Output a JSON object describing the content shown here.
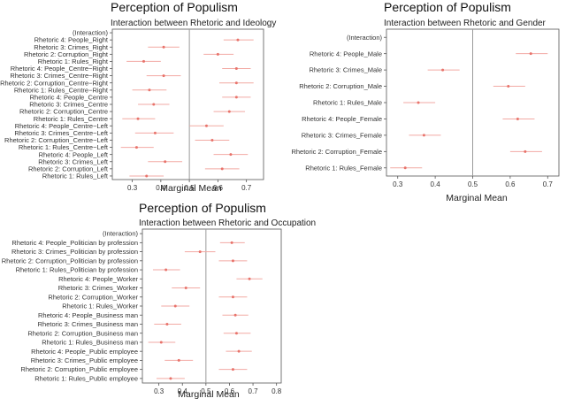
{
  "chart_data": [
    {
      "type": "scatter",
      "title": "Perception of Populism",
      "subtitle": "Interaction between Rhetoric and Ideology",
      "xlabel": "Marginal Mean",
      "ylabel": "",
      "xlim": [
        0.23,
        0.76
      ],
      "xticks": [
        "0.3",
        "0.4",
        "0.5",
        "0.6",
        "0.7"
      ],
      "reference_line": 0.5,
      "categories": [
        "(Interaction)",
        "Rhetoric 4: People_Right",
        "Rhetoric 3: Crimes_Right",
        "Rhetoric 2: Corruption_Right",
        "Rhetoric 1: Rules_Right",
        "Rhetoric 4: People_Centre−Right",
        "Rhetoric 3: Crimes_Centre−Right",
        "Rhetoric 2: Corruption_Centre−Right",
        "Rhetoric 1: Rules_Centre−Right",
        "Rhetoric 4: People_Centre",
        "Rhetoric 3: Crimes_Centre",
        "Rhetoric 2: Corruption_Centre",
        "Rhetoric 1: Rules_Centre",
        "Rhetoric 4: People_Centre−Left",
        "Rhetoric 3: Crimes_Centre−Left",
        "Rhetoric 2: Corruption_Centre−Left",
        "Rhetoric 1: Rules_Centre−Left",
        "Rhetoric 4: People_Left",
        "Rhetoric 3: Crimes_Left",
        "Rhetoric 2: Corruption_Left",
        "Rhetoric 1: Rules_Left"
      ],
      "estimates": [
        null,
        0.67,
        0.41,
        0.6,
        0.34,
        0.665,
        0.41,
        0.665,
        0.36,
        0.665,
        0.375,
        0.64,
        0.32,
        0.56,
        0.38,
        0.58,
        0.315,
        0.645,
        0.415,
        0.615,
        0.35
      ],
      "ci_low": [
        null,
        0.62,
        0.355,
        0.55,
        0.28,
        0.615,
        0.35,
        0.605,
        0.3,
        0.615,
        0.32,
        0.585,
        0.265,
        0.5,
        0.31,
        0.52,
        0.26,
        0.585,
        0.355,
        0.555,
        0.29
      ],
      "ci_high": [
        null,
        0.725,
        0.465,
        0.655,
        0.4,
        0.715,
        0.47,
        0.725,
        0.42,
        0.715,
        0.43,
        0.695,
        0.38,
        0.62,
        0.445,
        0.64,
        0.375,
        0.705,
        0.475,
        0.675,
        0.41
      ]
    },
    {
      "type": "scatter",
      "title": "Perception of Populism",
      "subtitle": "Interaction between Rhetoric and Gender",
      "xlabel": "Marginal Mean",
      "ylabel": "",
      "xlim": [
        0.27,
        0.73
      ],
      "xticks": [
        "0.3",
        "0.4",
        "0.5",
        "0.6",
        "0.7"
      ],
      "reference_line": 0.5,
      "categories": [
        "(Interaction)",
        "Rhetoric 4: People_Male",
        "Rhetoric 3: Crimes_Male",
        "Rhetoric 2: Corruption_Male",
        "Rhetoric 1: Rules_Male",
        "Rhetoric 4: People_Female",
        "Rhetoric 3: Crimes_Female",
        "Rhetoric 2: Corruption_Female",
        "Rhetoric 1: Rules_Female"
      ],
      "estimates": [
        null,
        0.655,
        0.42,
        0.595,
        0.355,
        0.62,
        0.37,
        0.64,
        0.32
      ],
      "ci_low": [
        null,
        0.615,
        0.38,
        0.555,
        0.315,
        0.58,
        0.33,
        0.6,
        0.28
      ],
      "ci_high": [
        null,
        0.7,
        0.465,
        0.64,
        0.4,
        0.665,
        0.415,
        0.685,
        0.365
      ]
    },
    {
      "type": "scatter",
      "title": "Perception of Populism",
      "subtitle": "Interaction between Rhetoric and Occupation",
      "xlabel": "Marginal Mean",
      "ylabel": "",
      "xlim": [
        0.23,
        0.82
      ],
      "xticks": [
        "0.3",
        "0.4",
        "0.5",
        "0.6",
        "0.7",
        "0.8"
      ],
      "reference_line": 0.5,
      "categories": [
        "(Interaction)",
        "Rhetoric 4: People_Politician by profession",
        "Rhetoric 3: Crimes_Politician by profession",
        "Rhetoric 2: Corruption_Politician by profession",
        "Rhetoric 1: Rules_Politician by profession",
        "Rhetoric 4: People_Worker",
        "Rhetoric 3: Crimes_Worker",
        "Rhetoric 2: Corruption_Worker",
        "Rhetoric 1: Rules_Worker",
        "Rhetoric 4: People_Business man",
        "Rhetoric 3: Crimes_Business man",
        "Rhetoric 2: Corruption_Business man",
        "Rhetoric 1: Rules_Business man",
        "Rhetoric 4: People_Public employee",
        "Rhetoric 3: Crimes_Public employee",
        "Rhetoric 2: Corruption_Public employee",
        "Rhetoric 1: Rules_Public employee"
      ],
      "estimates": [
        null,
        0.61,
        0.475,
        0.615,
        0.33,
        0.685,
        0.415,
        0.615,
        0.37,
        0.625,
        0.335,
        0.63,
        0.31,
        0.64,
        0.385,
        0.615,
        0.35
      ],
      "ci_low": [
        null,
        0.56,
        0.41,
        0.555,
        0.275,
        0.63,
        0.355,
        0.555,
        0.31,
        0.57,
        0.28,
        0.575,
        0.255,
        0.585,
        0.325,
        0.555,
        0.29
      ],
      "ci_high": [
        null,
        0.665,
        0.54,
        0.675,
        0.39,
        0.74,
        0.475,
        0.675,
        0.43,
        0.68,
        0.395,
        0.69,
        0.37,
        0.695,
        0.445,
        0.675,
        0.41
      ]
    }
  ],
  "colors": {
    "point": "#e8736b",
    "ci": "#f2aaa4",
    "refline": "#9a9a9a",
    "frame": "#555555"
  }
}
